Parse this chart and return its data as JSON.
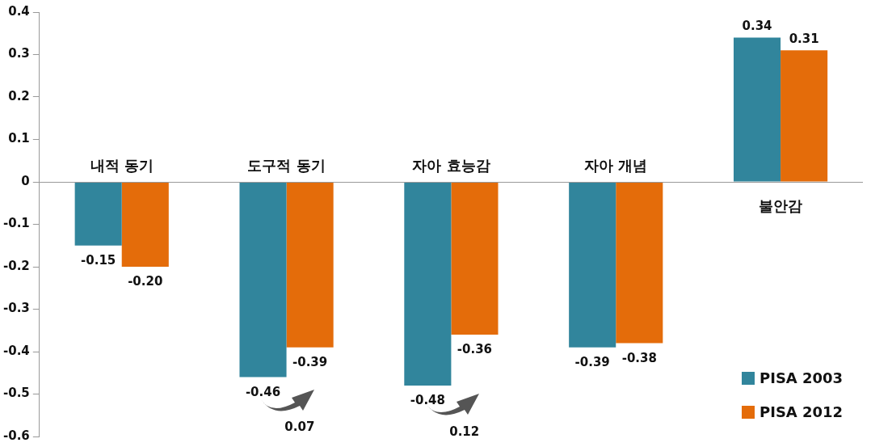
{
  "chart_data": {
    "type": "bar",
    "categories": [
      "내적 동기",
      "도구적 동기",
      "자아 효능감",
      "자아 개념",
      "불안감"
    ],
    "series": [
      {
        "name": "PISA 2003",
        "color": "#31859c",
        "values": [
          -0.15,
          -0.46,
          -0.48,
          -0.39,
          0.34
        ],
        "value_labels": [
          "-0.15",
          "-0.46",
          "-0.48",
          "-0.39",
          "0.34"
        ]
      },
      {
        "name": "PISA 2012",
        "color": "#e46c0a",
        "values": [
          -0.2,
          -0.39,
          -0.36,
          -0.38,
          0.31
        ],
        "value_labels": [
          "-0.20",
          "-0.39",
          "-0.36",
          "-0.38",
          "0.31"
        ]
      }
    ],
    "ylim": [
      -0.6,
      0.4
    ],
    "yticks": [
      -0.6,
      -0.5,
      -0.4,
      -0.3,
      -0.2,
      -0.1,
      0,
      0.1,
      0.2,
      0.3,
      0.4
    ],
    "grid": false,
    "legend": "bottom right",
    "annotations": [
      "0.07",
      "0.12"
    ]
  }
}
